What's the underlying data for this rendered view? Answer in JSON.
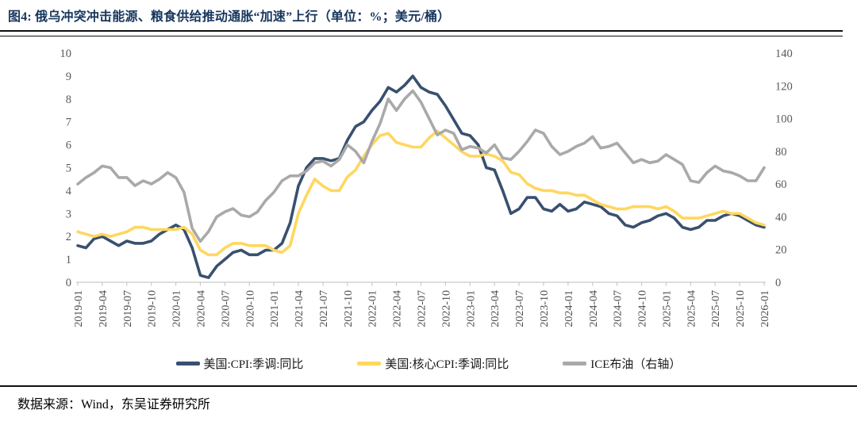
{
  "header": {
    "title": "图4: 俄乌冲突冲击能源、粮食供给推动通胀“加速”上行（单位：%；美元/桶）"
  },
  "footer": {
    "source": "数据来源：Wind，东吴证券研究所"
  },
  "chart_data": {
    "type": "line",
    "start": "2019-01",
    "frequency": "monthly",
    "x_tick_labels": [
      "2019-01",
      "2019-04",
      "2019-07",
      "2019-10",
      "2020-01",
      "2020-04",
      "2020-07",
      "2020-10",
      "2021-01",
      "2021-04",
      "2021-07",
      "2021-10",
      "2022-01",
      "2022-04",
      "2022-07",
      "2022-10",
      "2023-01",
      "2023-04",
      "2023-07",
      "2023-10",
      "2024-01",
      "2024-04",
      "2024-07",
      "2024-10",
      "2025-01",
      "2025-04",
      "2025-07",
      "2025-10",
      "2026-01"
    ],
    "left_axis": {
      "min": 0,
      "max": 10,
      "step": 1,
      "ticks": [
        0,
        1,
        2,
        3,
        4,
        5,
        6,
        7,
        8,
        9,
        10
      ]
    },
    "right_axis": {
      "min": 0,
      "max": 140,
      "step": 20,
      "ticks": [
        0,
        20,
        40,
        60,
        80,
        100,
        120,
        140
      ]
    },
    "grid": false,
    "legend_position": "bottom",
    "series": [
      {
        "key": "us-cpi",
        "name": "美国:CPI:季调:同比",
        "axis": "left",
        "color": "#39506F",
        "values": [
          1.6,
          1.5,
          1.9,
          2.0,
          1.8,
          1.6,
          1.8,
          1.7,
          1.7,
          1.8,
          2.1,
          2.3,
          2.5,
          2.3,
          1.5,
          0.3,
          0.2,
          0.7,
          1.0,
          1.3,
          1.4,
          1.2,
          1.2,
          1.4,
          1.4,
          1.7,
          2.6,
          4.2,
          5.0,
          5.4,
          5.4,
          5.3,
          5.4,
          6.2,
          6.8,
          7.0,
          7.5,
          7.9,
          8.5,
          8.3,
          8.6,
          9.0,
          8.5,
          8.3,
          8.2,
          7.7,
          7.1,
          6.5,
          6.4,
          6.0,
          5.0,
          4.9,
          4.0,
          3.0,
          3.2,
          3.7,
          3.7,
          3.2,
          3.1,
          3.4,
          3.1,
          3.2,
          3.5,
          3.4,
          3.3,
          3.0,
          2.9,
          2.5,
          2.4,
          2.6,
          2.7,
          2.9,
          3.0,
          2.8,
          2.4,
          2.3,
          2.4,
          2.7,
          2.7,
          2.9,
          3.0,
          2.9,
          2.7,
          2.5,
          2.4
        ]
      },
      {
        "key": "us-core-cpi",
        "name": "美国:核心CPI:季调:同比",
        "axis": "left",
        "color": "#FFD75F",
        "values": [
          2.2,
          2.1,
          2.0,
          2.1,
          2.0,
          2.1,
          2.2,
          2.4,
          2.4,
          2.3,
          2.3,
          2.3,
          2.3,
          2.4,
          2.1,
          1.4,
          1.2,
          1.2,
          1.5,
          1.7,
          1.7,
          1.6,
          1.6,
          1.6,
          1.4,
          1.3,
          1.6,
          3.0,
          3.8,
          4.5,
          4.2,
          4.0,
          4.0,
          4.6,
          4.9,
          5.5,
          6.0,
          6.4,
          6.5,
          6.1,
          6.0,
          5.9,
          5.9,
          6.3,
          6.6,
          6.3,
          6.0,
          5.7,
          5.5,
          5.5,
          5.6,
          5.5,
          5.3,
          4.8,
          4.7,
          4.3,
          4.1,
          4.0,
          4.0,
          3.9,
          3.9,
          3.8,
          3.8,
          3.6,
          3.4,
          3.3,
          3.2,
          3.2,
          3.3,
          3.3,
          3.3,
          3.2,
          3.3,
          3.1,
          2.8,
          2.8,
          2.8,
          2.9,
          3.0,
          3.1,
          3.0,
          3.0,
          2.8,
          2.6,
          2.5
        ]
      },
      {
        "key": "ice-brent",
        "name": "ICE布油（右轴）",
        "axis": "right",
        "color": "#A9A9A9",
        "values": [
          60,
          64,
          67,
          71,
          70,
          64,
          64,
          59,
          62,
          60,
          63,
          67,
          64,
          55,
          33,
          25,
          31,
          40,
          43,
          45,
          41,
          40,
          43,
          50,
          55,
          62,
          65,
          65,
          68,
          73,
          74,
          71,
          75,
          84,
          80,
          73,
          86,
          97,
          112,
          105,
          112,
          117,
          110,
          100,
          90,
          93,
          91,
          81,
          83,
          82,
          79,
          84,
          76,
          75,
          80,
          86,
          93,
          91,
          83,
          78,
          80,
          83,
          85,
          89,
          82,
          83,
          85,
          79,
          73,
          75,
          73,
          74,
          78,
          75,
          72,
          62,
          61,
          67,
          71,
          68,
          67,
          65,
          62,
          62,
          70
        ]
      }
    ]
  }
}
